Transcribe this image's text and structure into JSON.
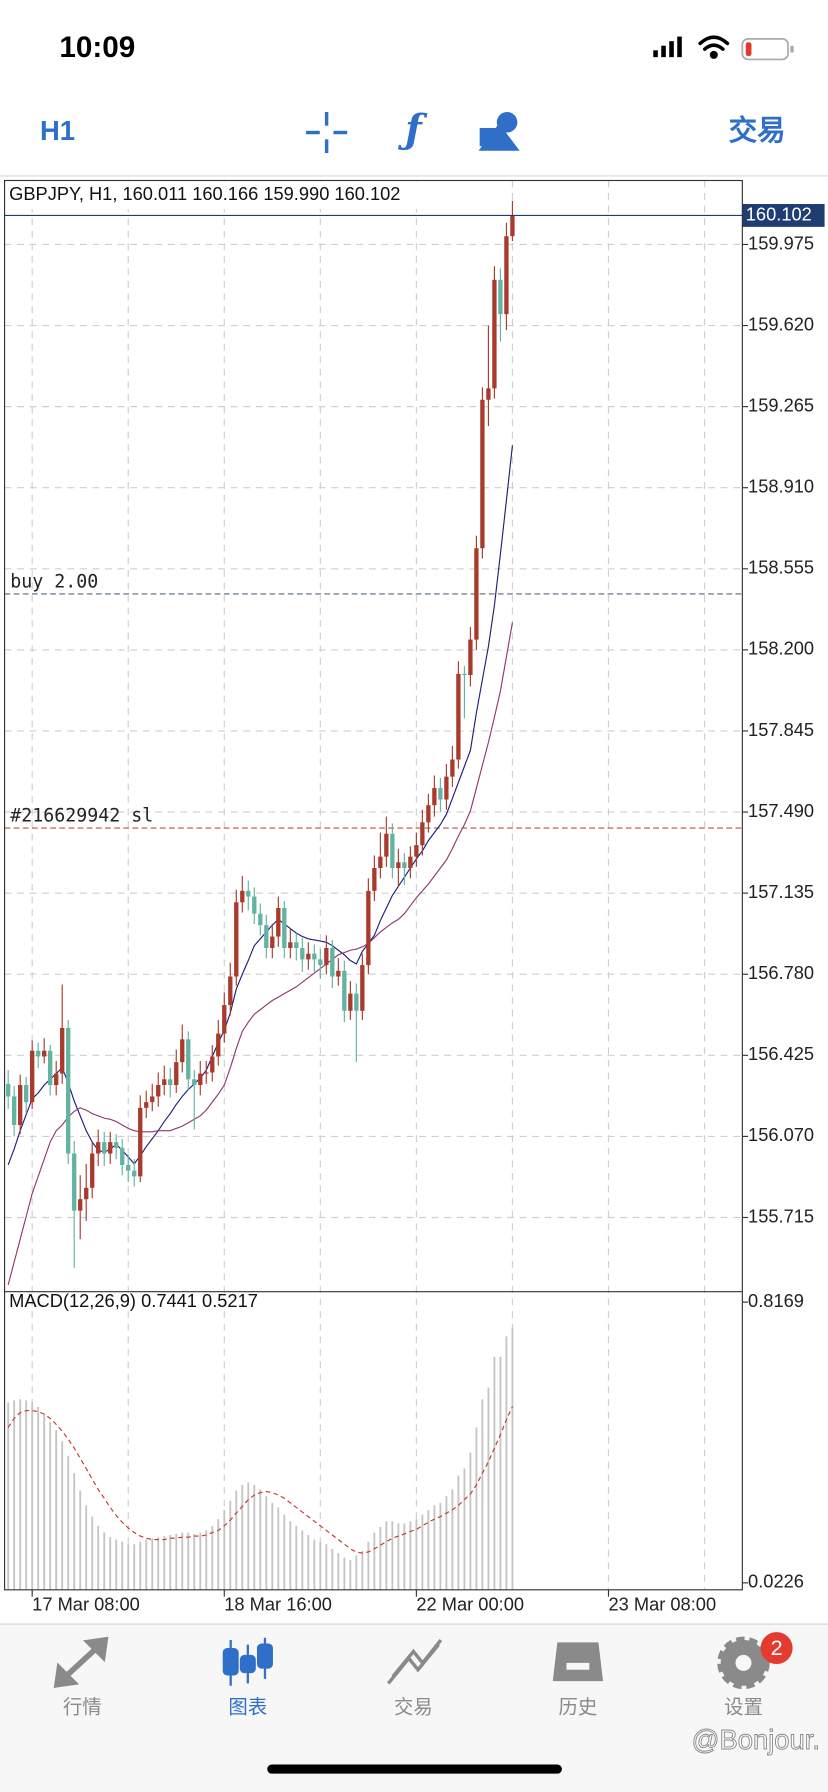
{
  "status_bar": {
    "time": "10:09"
  },
  "toolbar": {
    "timeframe": "H1",
    "trade": "交易"
  },
  "chart_data": [
    {
      "type": "candlestick",
      "title": "GBPJPY, H1, 160.011 160.166 159.990 160.102",
      "up_color": "#a93a2c",
      "down_color": "#62b3a2",
      "grid": true,
      "xlim": [
        -0.6,
        122.3
      ],
      "ylim": [
        155.395,
        160.255
      ],
      "yticks": [
        159.975,
        {
          "value": 159.62,
          "label": "159.620"
        },
        159.265,
        {
          "value": 158.91,
          "label": "158.910"
        },
        158.555,
        {
          "value": 158.2,
          "label": "158.200"
        },
        157.845,
        {
          "value": 157.49,
          "label": "157.490"
        },
        157.135,
        {
          "value": 156.78,
          "label": "156.780"
        },
        156.425,
        {
          "value": 156.07,
          "label": "156.070"
        },
        155.715
      ],
      "xticks": [
        {
          "value": 4,
          "label": "17 Mar 08:00"
        },
        {
          "value": 36,
          "label": "18 Mar 16:00"
        },
        {
          "value": 68,
          "label": "22 Mar 00:00"
        },
        {
          "value": 100,
          "label": "23 Mar 08:00"
        }
      ],
      "minor_xticks": [
        20,
        52,
        84,
        116
      ],
      "ohlc": [
        [
          156.3,
          156.36,
          156.19,
          156.245
        ],
        [
          156.245,
          156.29,
          156.07,
          156.12
        ],
        [
          156.12,
          156.34,
          156.08,
          156.295
        ],
        [
          156.295,
          156.33,
          156.17,
          156.22
        ],
        [
          156.22,
          156.49,
          156.19,
          156.445
        ],
        [
          156.445,
          156.48,
          156.37,
          156.42
        ],
        [
          156.42,
          156.5,
          156.39,
          156.445
        ],
        [
          156.445,
          156.47,
          156.25,
          156.295
        ],
        [
          156.295,
          156.4,
          156.25,
          156.345
        ],
        [
          156.345,
          156.735,
          156.3,
          156.545
        ],
        [
          156.545,
          156.58,
          155.95,
          155.995
        ],
        [
          155.995,
          156.05,
          155.495,
          155.745
        ],
        [
          155.745,
          155.9,
          155.62,
          155.795
        ],
        [
          155.795,
          155.95,
          155.7,
          155.845
        ],
        [
          155.845,
          156.05,
          155.8,
          155.995
        ],
        [
          155.995,
          156.1,
          155.94,
          156.045
        ],
        [
          156.045,
          156.09,
          155.94,
          155.995
        ],
        [
          155.995,
          156.09,
          155.95,
          156.045
        ],
        [
          156.045,
          156.08,
          155.97,
          156.02
        ],
        [
          156.02,
          156.06,
          155.9,
          155.945
        ],
        [
          155.945,
          155.99,
          155.87,
          155.92
        ],
        [
          155.92,
          155.97,
          155.85,
          155.895
        ],
        [
          155.895,
          156.25,
          155.87,
          156.195
        ],
        [
          156.195,
          156.27,
          156.15,
          156.22
        ],
        [
          156.22,
          156.3,
          156.18,
          156.245
        ],
        [
          156.245,
          156.35,
          156.2,
          156.295
        ],
        [
          156.295,
          156.38,
          156.25,
          156.32
        ],
        [
          156.32,
          156.37,
          156.24,
          156.295
        ],
        [
          156.295,
          156.45,
          156.26,
          156.395
        ],
        [
          156.395,
          156.56,
          156.35,
          156.495
        ],
        [
          156.495,
          156.53,
          156.27,
          156.32
        ],
        [
          156.32,
          156.36,
          156.1,
          156.295
        ],
        [
          156.295,
          156.4,
          156.25,
          156.345
        ],
        [
          156.345,
          156.4,
          156.3,
          156.35
        ],
        [
          156.35,
          156.47,
          156.31,
          156.42
        ],
        [
          156.42,
          156.58,
          156.38,
          156.52
        ],
        [
          156.52,
          156.7,
          156.48,
          156.645
        ],
        [
          156.645,
          156.83,
          156.6,
          156.77
        ],
        [
          156.77,
          157.15,
          156.73,
          157.095
        ],
        [
          157.095,
          157.21,
          157.05,
          157.145
        ],
        [
          157.145,
          157.19,
          157.06,
          157.12
        ],
        [
          157.12,
          157.16,
          157.0,
          157.045
        ],
        [
          157.045,
          157.09,
          156.95,
          156.995
        ],
        [
          156.995,
          157.04,
          156.85,
          156.895
        ],
        [
          156.895,
          157.0,
          156.85,
          156.945
        ],
        [
          156.945,
          157.12,
          156.9,
          157.07
        ],
        [
          157.07,
          157.1,
          156.85,
          156.895
        ],
        [
          156.895,
          156.98,
          156.85,
          156.92
        ],
        [
          156.92,
          156.96,
          156.84,
          156.895
        ],
        [
          156.895,
          156.94,
          156.79,
          156.845
        ],
        [
          156.845,
          156.92,
          156.8,
          156.87
        ],
        [
          156.87,
          156.91,
          156.79,
          156.845
        ],
        [
          156.845,
          156.89,
          156.76,
          156.82
        ],
        [
          156.82,
          156.95,
          156.78,
          156.895
        ],
        [
          156.895,
          156.93,
          156.72,
          156.77
        ],
        [
          156.77,
          156.85,
          156.73,
          156.795
        ],
        [
          156.795,
          156.84,
          156.57,
          156.62
        ],
        [
          156.62,
          156.75,
          156.58,
          156.695
        ],
        [
          156.695,
          156.74,
          156.395,
          156.62
        ],
        [
          156.62,
          156.87,
          156.58,
          156.82
        ],
        [
          156.82,
          157.2,
          156.78,
          157.145
        ],
        [
          157.145,
          157.3,
          157.1,
          157.245
        ],
        [
          157.245,
          157.4,
          157.2,
          157.295
        ],
        [
          157.295,
          157.47,
          157.25,
          157.395
        ],
        [
          157.395,
          157.44,
          157.2,
          157.245
        ],
        [
          157.245,
          157.33,
          157.16,
          157.27
        ],
        [
          157.27,
          157.31,
          157.17,
          157.245
        ],
        [
          157.245,
          157.34,
          157.2,
          157.295
        ],
        [
          157.295,
          157.4,
          157.25,
          157.345
        ],
        [
          157.345,
          157.5,
          157.3,
          157.445
        ],
        [
          157.445,
          157.57,
          157.4,
          157.52
        ],
        [
          157.52,
          157.65,
          157.47,
          157.595
        ],
        [
          157.595,
          157.64,
          157.49,
          157.545
        ],
        [
          157.545,
          157.7,
          157.5,
          157.645
        ],
        [
          157.645,
          157.78,
          157.6,
          157.72
        ],
        [
          157.72,
          158.15,
          157.68,
          158.095
        ],
        [
          158.095,
          158.13,
          157.9,
          158.09
        ],
        [
          158.09,
          158.3,
          158.04,
          158.245
        ],
        [
          158.245,
          158.7,
          158.2,
          158.645
        ],
        [
          158.645,
          159.35,
          158.6,
          159.295
        ],
        [
          159.295,
          159.62,
          159.18,
          159.345
        ],
        [
          159.345,
          159.88,
          159.3,
          159.82
        ],
        [
          159.82,
          159.87,
          159.55,
          159.67
        ],
        [
          159.67,
          160.07,
          159.6,
          160.011
        ],
        [
          160.011,
          160.166,
          159.99,
          160.102
        ]
      ],
      "series": [
        {
          "color": "#1c1f7a",
          "values": [
            155.945,
            156.015,
            156.095,
            156.165,
            156.235,
            156.26,
            156.295,
            156.32,
            156.345,
            156.37,
            156.305,
            156.225,
            156.16,
            156.095,
            156.045,
            156.01,
            156.0,
            156.015,
            156.035,
            156.01,
            155.98,
            155.95,
            155.985,
            156.025,
            156.06,
            156.095,
            156.135,
            156.17,
            156.21,
            156.245,
            156.275,
            156.3,
            156.325,
            156.36,
            156.42,
            156.48,
            156.535,
            156.61,
            156.715,
            156.78,
            156.84,
            156.905,
            156.935,
            156.965,
            156.995,
            157.02,
            157.0,
            156.98,
            156.96,
            156.945,
            156.935,
            156.93,
            156.925,
            156.92,
            156.905,
            156.885,
            156.865,
            156.84,
            156.825,
            156.88,
            156.915,
            156.95,
            157.015,
            157.07,
            157.125,
            157.165,
            157.205,
            157.245,
            157.285,
            157.32,
            157.365,
            157.4,
            157.435,
            157.48,
            157.55,
            157.62,
            157.69,
            157.76,
            157.925,
            158.07,
            158.215,
            158.395,
            158.62,
            158.855,
            159.095
          ]
        },
        {
          "color": "#8e3a70",
          "values": [
            155.42,
            155.52,
            155.62,
            155.72,
            155.82,
            155.895,
            155.97,
            156.045,
            156.095,
            156.12,
            156.155,
            156.18,
            156.195,
            156.185,
            156.17,
            156.16,
            156.15,
            156.145,
            156.135,
            156.12,
            156.105,
            156.095,
            156.09,
            156.09,
            156.09,
            156.095,
            156.095,
            156.095,
            156.105,
            156.115,
            156.13,
            156.145,
            156.16,
            156.185,
            156.22,
            156.255,
            156.295,
            156.37,
            156.455,
            156.53,
            156.57,
            156.605,
            156.625,
            156.645,
            156.665,
            156.68,
            156.695,
            156.71,
            156.725,
            156.745,
            156.765,
            156.785,
            156.805,
            156.825,
            156.845,
            156.865,
            156.875,
            156.885,
            156.89,
            156.9,
            156.915,
            156.94,
            156.965,
            156.985,
            157.005,
            157.02,
            157.045,
            157.08,
            157.115,
            157.145,
            157.175,
            157.21,
            157.245,
            157.28,
            157.33,
            157.385,
            157.435,
            157.495,
            157.595,
            157.695,
            157.795,
            157.905,
            158.02,
            158.17,
            158.32
          ]
        }
      ],
      "levels": [
        {
          "label": "buy 2.00",
          "value": 158.445,
          "color": "#55697a"
        },
        {
          "label": "#216629942 sl",
          "value": 157.42,
          "color": "#c0503a"
        }
      ],
      "price_line_color": "#1f3d73"
    },
    {
      "type": "macd",
      "title": "MACD(12,26,9) 0.7441 0.5217",
      "ylim": [
        0.003,
        0.843
      ],
      "yticks": [
        0.8169,
        0.0226
      ],
      "histogram": {
        "color": "#c4c4c4",
        "values": [
          0.533,
          0.539,
          0.542,
          0.539,
          0.533,
          0.52,
          0.5,
          0.478,
          0.455,
          0.423,
          0.381,
          0.333,
          0.284,
          0.242,
          0.21,
          0.184,
          0.165,
          0.152,
          0.145,
          0.139,
          0.132,
          0.132,
          0.139,
          0.145,
          0.149,
          0.152,
          0.155,
          0.158,
          0.161,
          0.165,
          0.165,
          0.161,
          0.165,
          0.171,
          0.184,
          0.203,
          0.229,
          0.255,
          0.284,
          0.3,
          0.307,
          0.3,
          0.287,
          0.268,
          0.249,
          0.236,
          0.216,
          0.197,
          0.184,
          0.171,
          0.158,
          0.145,
          0.139,
          0.132,
          0.119,
          0.107,
          0.094,
          0.087,
          0.1,
          0.113,
          0.139,
          0.165,
          0.181,
          0.197,
          0.197,
          0.191,
          0.191,
          0.197,
          0.203,
          0.216,
          0.229,
          0.242,
          0.249,
          0.268,
          0.287,
          0.326,
          0.346,
          0.391,
          0.462,
          0.542,
          0.575,
          0.662,
          0.662,
          0.72,
          0.7441
        ]
      },
      "signal": {
        "color": "#c0392b",
        "values": [
          0.462,
          0.488,
          0.504,
          0.51,
          0.51,
          0.507,
          0.5,
          0.488,
          0.471,
          0.452,
          0.429,
          0.404,
          0.375,
          0.346,
          0.316,
          0.287,
          0.262,
          0.236,
          0.213,
          0.194,
          0.178,
          0.165,
          0.155,
          0.149,
          0.145,
          0.145,
          0.145,
          0.149,
          0.149,
          0.152,
          0.152,
          0.155,
          0.155,
          0.158,
          0.165,
          0.171,
          0.184,
          0.2,
          0.22,
          0.239,
          0.258,
          0.271,
          0.278,
          0.281,
          0.278,
          0.271,
          0.262,
          0.249,
          0.236,
          0.223,
          0.21,
          0.197,
          0.184,
          0.171,
          0.158,
          0.145,
          0.132,
          0.119,
          0.11,
          0.107,
          0.11,
          0.119,
          0.129,
          0.139,
          0.149,
          0.155,
          0.161,
          0.168,
          0.174,
          0.184,
          0.194,
          0.203,
          0.21,
          0.22,
          0.229,
          0.242,
          0.258,
          0.274,
          0.3,
          0.333,
          0.365,
          0.404,
          0.442,
          0.484,
          0.5217
        ]
      }
    }
  ],
  "tab_bar": {
    "tabs": [
      "行情",
      "图表",
      "交易",
      "历史",
      "设置"
    ],
    "badge": 2
  },
  "watermark": "@Bonjour."
}
